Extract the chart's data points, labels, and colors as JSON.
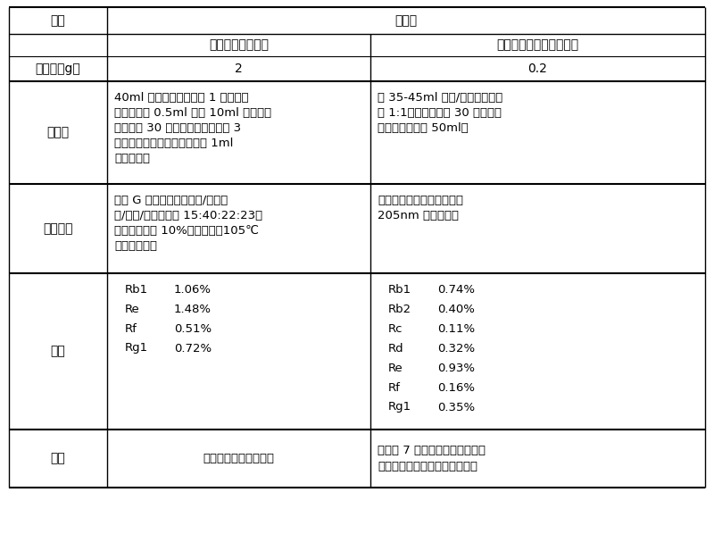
{
  "title": "袋泡茶",
  "col1_header": "样品",
  "col2_header": "一般的薄层色谱法",
  "col3_header": "本发明的高效液相色谱法",
  "row_sample_label": "称样量（g）",
  "row_sample_col2": "2",
  "row_sample_col3": "0.2",
  "row_pretreat_label": "前处理",
  "row_pretreat_col2": "40ml 三氯甲烷加热回流 1 小时，去\n除溶剂，加 0.5ml 水和 10ml 正丁醇，\n超声提取 30 分钟。去除上清液加 3\n倍氯试液摇匀，蒸干溶剂，用 1ml\n甲醇定容。",
  "row_pretreat_col3": "加 35-45ml 乙醇/水溶液（体积\n比 1:1），超声提取 30 分钟，用\n少量乙腈定容至 50ml。",
  "row_instrument_label": "仪器分析",
  "row_instrument_col2": "硅胶 G 薄层板以三氯甲烷/乙酸乙\n酯/甲醇/水（体积比 15:40:22:23）\n为展开剂，喷 10%硫酸乙醇，105℃\n加热显色扫描",
  "row_instrument_col3": "乙腈和水梯度洗脱，在波长\n205nm 处进行检测",
  "row_result_label": "结果",
  "row_result_col2": "Rb1    1.06%\nRe     1.48%\nRf      0.51%\nRg1   0.72%",
  "row_result_col3": "Rb1    0.74%\nRb2   0.40%\nRc      0.11%\nRd     0.32%\nRe     0.93%\nRf      0.16%\nRg1   0.35%",
  "row_feature_label": "特点",
  "row_feature_col2": "背景干扰大，重复性差",
  "row_feature_col3": "可分离 7 种皂苷，干扰少，分离\n度好。前处理简单，易于操作。",
  "bg_color": "#ffffff",
  "text_color": "#000000",
  "line_color": "#000000",
  "header_bg": "#ffffff",
  "font_size": 10,
  "title_font_size": 11
}
